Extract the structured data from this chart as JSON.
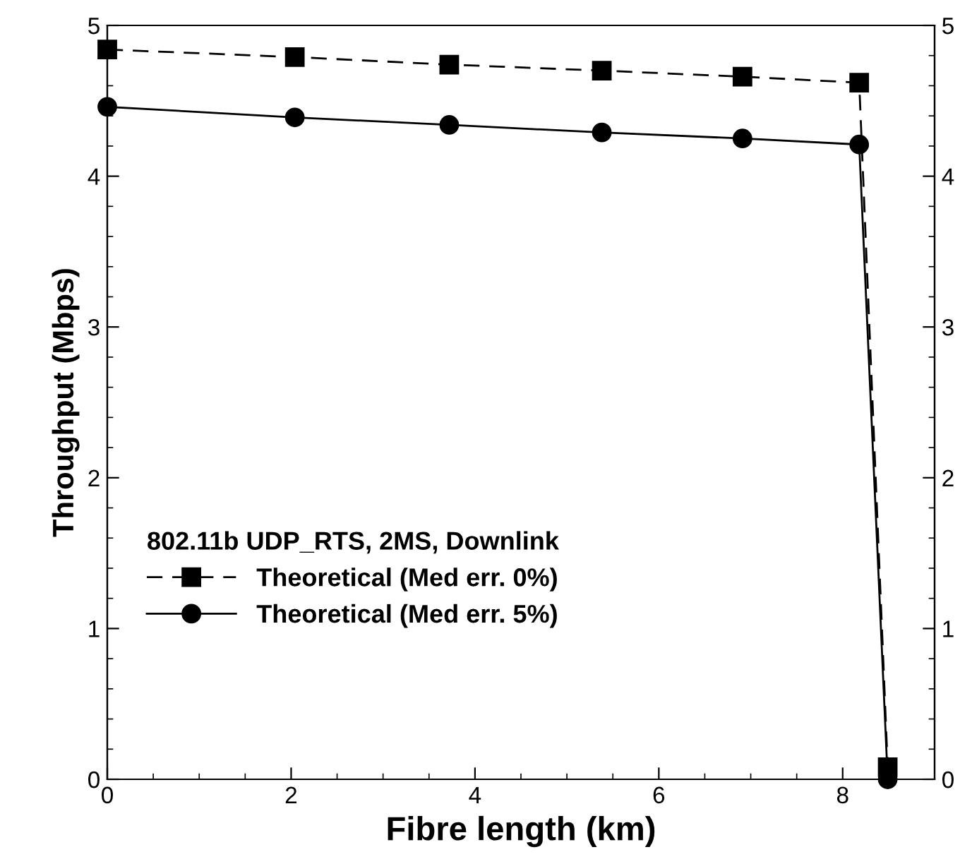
{
  "chart_data": {
    "type": "line",
    "xlabel": "Fibre length (km)",
    "ylabel": "Throughput (Mbps)",
    "legend_title": "802.11b UDP_RTS, 2MS, Downlink",
    "legend": "left",
    "grid": false,
    "xlim": [
      0,
      9
    ],
    "xticks": [
      0,
      2,
      4,
      6,
      8
    ],
    "ylim": [
      0,
      5
    ],
    "yticks": [
      0,
      1,
      2,
      3,
      4,
      5
    ],
    "y2lim": [
      0,
      5
    ],
    "y2ticks": [
      0,
      1,
      2,
      3,
      4,
      5
    ],
    "series": [
      {
        "name": "Theoretical (Med err. 0%)",
        "color": "#000000",
        "marker": "square",
        "line_style": "dashed",
        "x": [
          0,
          2.04,
          3.72,
          5.38,
          6.91,
          8.18,
          8.49
        ],
        "values": [
          4.84,
          4.79,
          4.74,
          4.7,
          4.66,
          4.62,
          0.08
        ]
      },
      {
        "name": "Theoretical (Med err. 5%)",
        "color": "#000000",
        "marker": "circle",
        "line_style": "solid",
        "x": [
          0,
          2.04,
          3.72,
          5.38,
          6.91,
          8.18,
          8.49
        ],
        "values": [
          4.46,
          4.39,
          4.34,
          4.29,
          4.25,
          4.21,
          0
        ]
      }
    ]
  }
}
